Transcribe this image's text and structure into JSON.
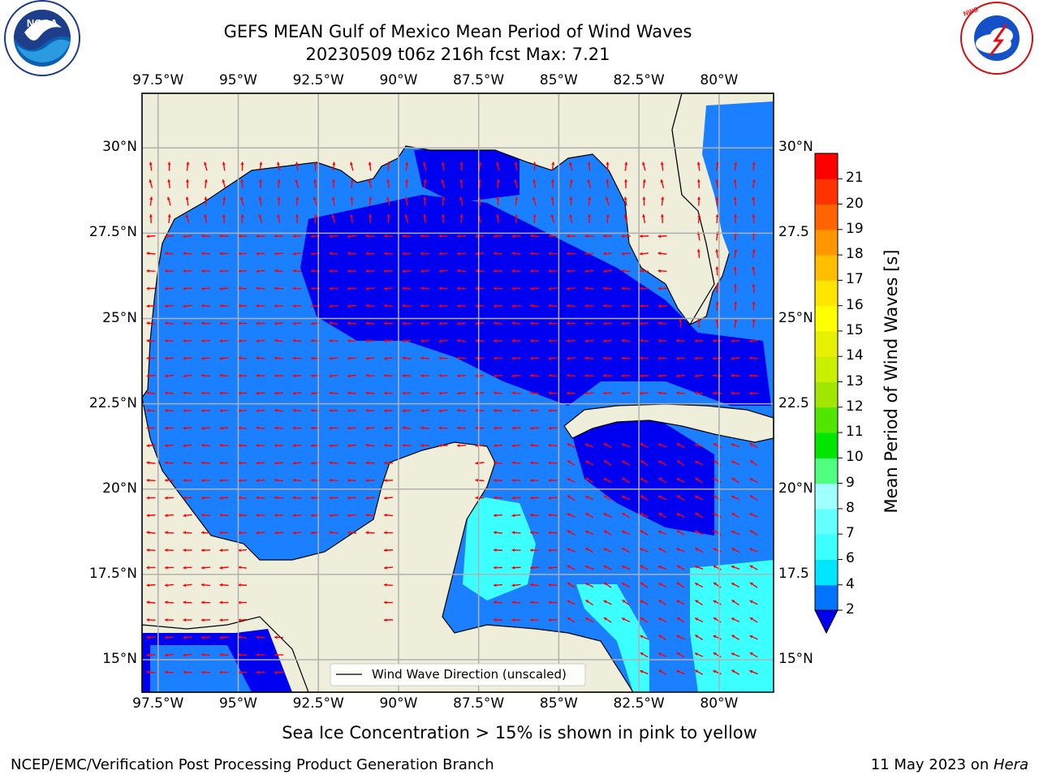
{
  "title": {
    "line1": "GEFS MEAN Gulf of Mexico Mean Period of Wind Waves",
    "line2": "20230509 t06z 216h fcst   Max: 7.21"
  },
  "logos": {
    "left": "noaa-logo",
    "right": "national-weather-service-logo",
    "right_text": "NATIONAL WEATHER SERVICE"
  },
  "map": {
    "lon_ticks": [
      "97.5°W",
      "95°W",
      "92.5°W",
      "90°W",
      "87.5°W",
      "85°W",
      "82.5°W",
      "80°W"
    ],
    "lon_values": [
      -97.5,
      -95,
      -92.5,
      -90,
      -87.5,
      -85,
      -82.5,
      -80
    ],
    "lat_ticks_left": [
      "30°N",
      "27.5°N",
      "25°N",
      "22.5°N",
      "20°N",
      "17.5°N",
      "15°N"
    ],
    "lat_ticks_right": [
      "30°N",
      "27.5",
      "25°N",
      "22.5",
      "20°N",
      "17.5",
      "15°N"
    ],
    "lat_values": [
      30,
      27.5,
      25,
      22.5,
      20,
      17.5,
      15
    ],
    "extent": {
      "lon_min": -98,
      "lon_max": -78.3,
      "lat_min": 14.05,
      "lat_max": 31.6
    },
    "legend_label": "Wind Wave Direction (unscaled)",
    "colors": {
      "land": "#efeedb",
      "dark_blue": "#0000f0",
      "mid_blue": "#1a80ff",
      "cyan": "#3cffff",
      "pale_cyan": "#96ffff",
      "arrow": "#ff0000",
      "grid": "#b0b0b0"
    }
  },
  "colorbar": {
    "label": "Mean Period of Wind Waves [s]",
    "ticks": [
      "2",
      "4",
      "6",
      "7",
      "8",
      "9",
      "10",
      "11",
      "12",
      "13",
      "14",
      "15",
      "16",
      "17",
      "18",
      "19",
      "20",
      "21"
    ],
    "colors": [
      "#0073ff",
      "#00e6ff",
      "#3cffff",
      "#64ffff",
      "#a0ffff",
      "#50ff80",
      "#00e600",
      "#50e600",
      "#a0e600",
      "#c8f000",
      "#e6f000",
      "#ffff00",
      "#ffe600",
      "#ffbe00",
      "#ff9600",
      "#ff6400",
      "#ff3200",
      "#ff0000"
    ],
    "extend_color": "#0000f0"
  },
  "note": "Sea Ice Concentration > 15% is shown in pink to yellow",
  "footer": {
    "left": "NCEP/EMC/Verification Post Processing Product Generation Branch",
    "right_prefix": "11 May 2023 on ",
    "right_host": "Hera"
  }
}
